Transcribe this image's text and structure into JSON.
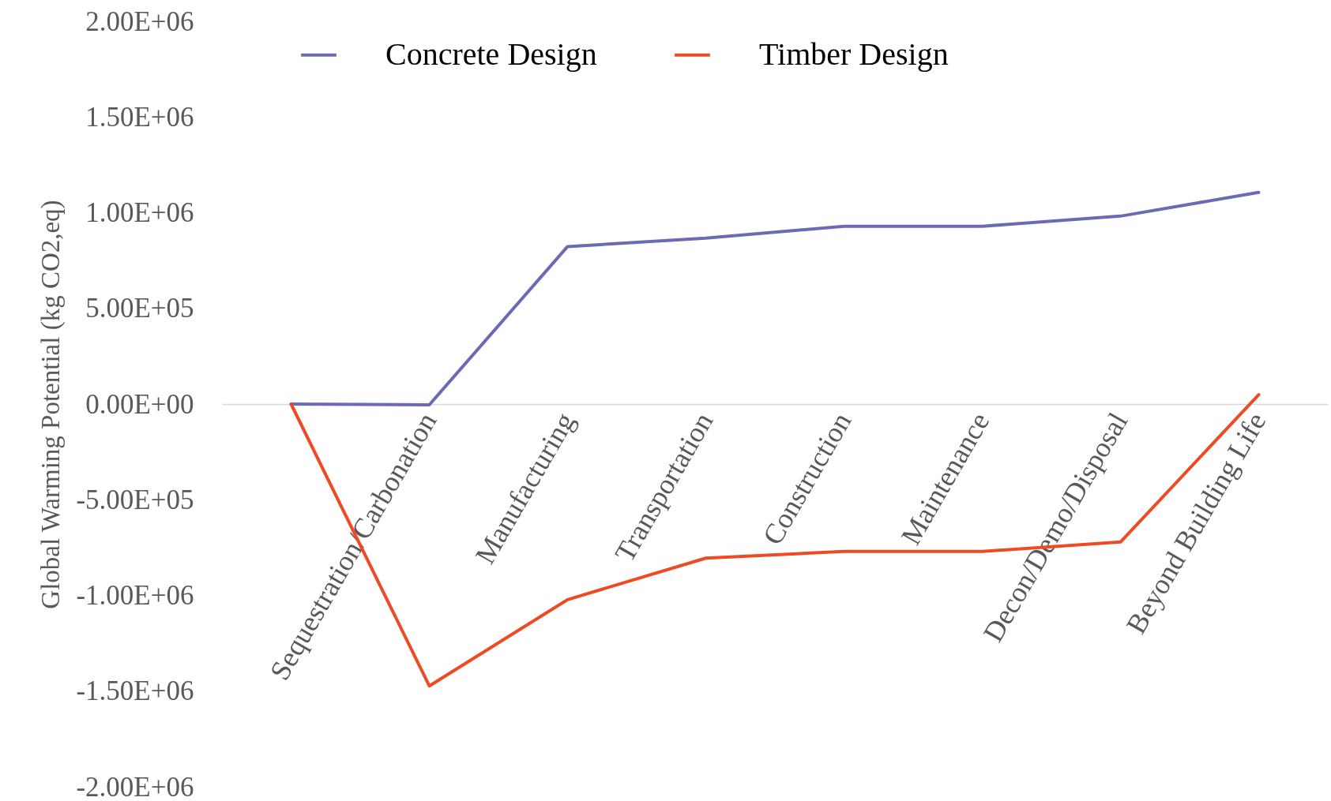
{
  "chart_data": {
    "type": "line",
    "ylabel": "Global Warming Potential (kg CO2,eq)",
    "categories": [
      null,
      "Sequestration/Carbonation",
      "Manufacturing",
      "Transportation",
      "Construction",
      "Maintenance",
      "Decon/Demo/Disposal",
      "Beyond Building Life"
    ],
    "series": [
      {
        "name": "Concrete Design",
        "color": "#6b6bb5",
        "values": [
          0,
          -4000,
          823000,
          867000,
          929000,
          929000,
          982000,
          1106000
        ]
      },
      {
        "name": "Timber Design",
        "color": "#ee4b25",
        "values": [
          0,
          -1473000,
          -1022000,
          -805000,
          -770000,
          -770000,
          -721000,
          49000
        ]
      }
    ],
    "ylim": [
      -2000000,
      2000000
    ],
    "yticks": [
      {
        "value": -2000000,
        "label": "-2.00E+06"
      },
      {
        "value": -1500000,
        "label": "-1.50E+06"
      },
      {
        "value": -1000000,
        "label": "-1.00E+06"
      },
      {
        "value": -500000,
        "label": "-5.00E+05"
      },
      {
        "value": 0,
        "label": "0.00E+00"
      },
      {
        "value": 500000,
        "label": "5.00E+05"
      },
      {
        "value": 1000000,
        "label": "1.00E+06"
      },
      {
        "value": 1500000,
        "label": "1.50E+06"
      },
      {
        "value": 2000000,
        "label": "2.00E+06"
      }
    ],
    "legend": "top",
    "grid": false,
    "marker": "none",
    "line_style": "solid"
  }
}
